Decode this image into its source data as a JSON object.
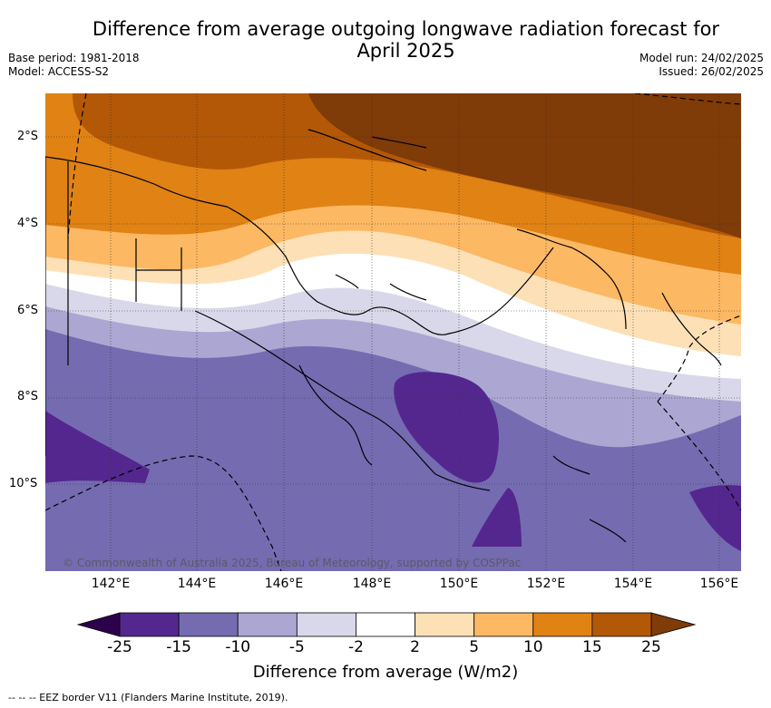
{
  "title": "Difference from average outgoing longwave radiation forecast for April 2025",
  "meta": {
    "base_period": "Base period: 1981-2018",
    "model": "Model: ACCESS-S2",
    "model_run": "Model run: 24/02/2025",
    "issued": "Issued: 26/02/2025"
  },
  "map": {
    "lat_labels": [
      "2°S",
      "4°S",
      "6°S",
      "8°S",
      "10°S"
    ],
    "lon_labels": [
      "142°E",
      "144°E",
      "146°E",
      "148°E",
      "150°E",
      "152°E",
      "154°E",
      "156°E"
    ],
    "copyright": "© Commonwealth of Australia 2025, Bureau of Meteorology, supported by COSPPac"
  },
  "colorbar": {
    "ticks": [
      "-25",
      "-15",
      "-10",
      "-5",
      "-2",
      "2",
      "5",
      "10",
      "15",
      "25"
    ],
    "colors": [
      "#54278f",
      "#756bb1",
      "#aba7d2",
      "#d9d8ea",
      "#ffffff",
      "#fee0b6",
      "#fdb863",
      "#e08214",
      "#b35806"
    ],
    "under_color": "#2d004b",
    "over_color": "#7f3b08",
    "label": "Difference from average (W/m2)"
  },
  "footer": "-- -- -- EEZ border V11 (Flanders Marine Institute, 2019)."
}
